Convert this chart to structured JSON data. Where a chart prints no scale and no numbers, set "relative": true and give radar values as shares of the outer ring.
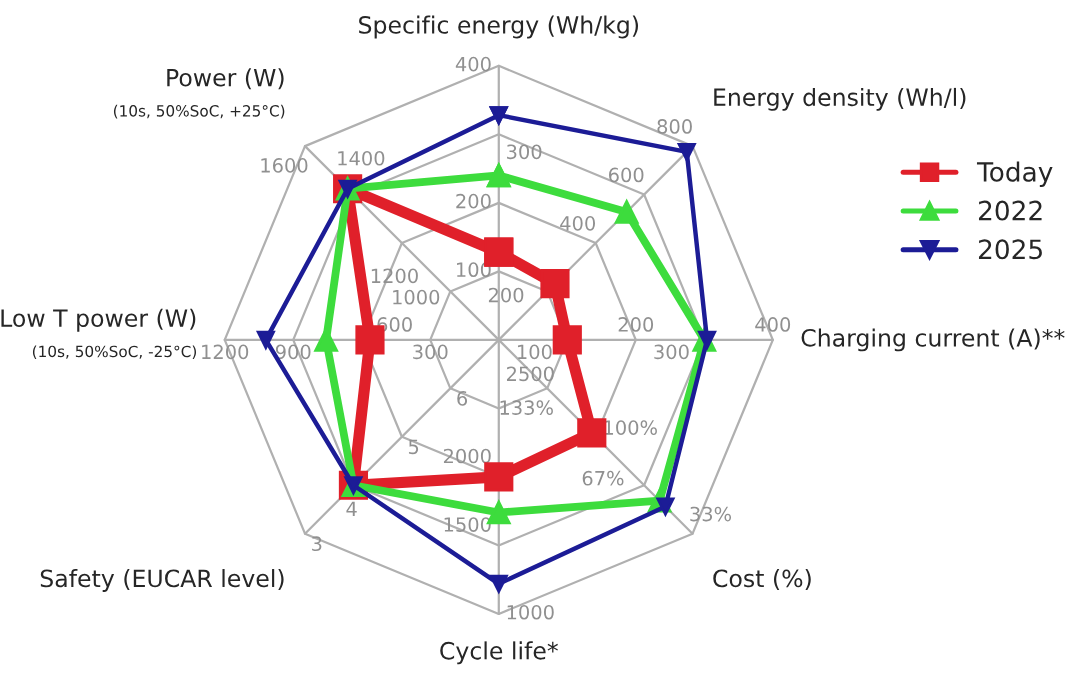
{
  "chart_data": {
    "type": "radar",
    "relative": true,
    "categories": [
      "Specific energy (Wh/kg)",
      "Energy density (Wh/l)",
      "Charging current (A)**",
      "Cost (%)",
      "Cycle life*",
      "Safety (EUCAR level)",
      "Low T power (W)\n(10s, 50%SoC, -25°C)",
      "Power (W)\n(10s, 50%SoC, +25°C)"
    ],
    "series": [
      {
        "name": "Today",
        "color": "#e0202a",
        "marker": "square",
        "values": [
          0.32,
          0.29,
          0.25,
          0.48,
          0.5,
          0.75,
          0.47,
          0.78
        ]
      },
      {
        "name": "2022",
        "color": "#3ddc3d",
        "marker": "triangle",
        "values": [
          0.6,
          0.66,
          0.75,
          0.83,
          0.63,
          0.75,
          0.63,
          0.78
        ]
      },
      {
        "name": "2025",
        "color": "#1c1c96",
        "marker": "triangle_down",
        "values": [
          0.82,
          0.97,
          0.76,
          0.86,
          0.89,
          0.75,
          0.85,
          0.78
        ]
      }
    ],
    "annotations": [
      "100",
      "200",
      "300",
      "400",
      "200",
      "400",
      "600",
      "800",
      "100",
      "200",
      "300",
      "400",
      "133%",
      "100%",
      "67%",
      "33%",
      "2500",
      "2000",
      "1500",
      "1000",
      "6",
      "5",
      "4",
      "3",
      "300",
      "600",
      "900",
      "1200",
      "1000",
      "1200",
      "1400",
      "1600"
    ],
    "grid": true,
    "legend": "top right"
  }
}
